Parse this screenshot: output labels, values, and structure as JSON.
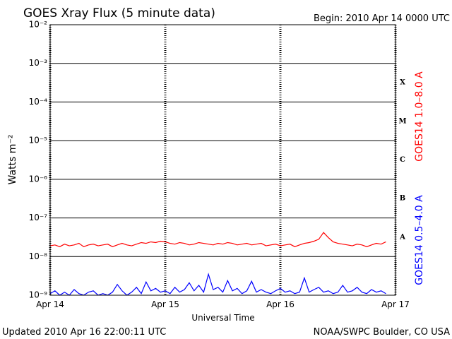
{
  "chart_data": {
    "type": "line",
    "title": "GOES Xray Flux (5 minute data)",
    "begin_label": "Begin:  2010 Apr 14 0000 UTC",
    "updated_label": "Updated 2010 Apr 16 22:00:11 UTC",
    "credit": "NOAA/SWPC Boulder, CO USA",
    "y_label": "Watts m⁻²",
    "x_label": "Universal Time",
    "log_scale": true,
    "grid": true,
    "xlim": [
      0,
      72
    ],
    "xticks": [
      {
        "value": 0,
        "label": "Apr 14"
      },
      {
        "value": 24,
        "label": "Apr 15"
      },
      {
        "value": 48,
        "label": "Apr 16"
      },
      {
        "value": 72,
        "label": "Apr 17"
      }
    ],
    "ylim": [
      1e-09,
      0.01
    ],
    "yticks": [
      {
        "value": 1e-09,
        "label": "10⁻⁹"
      },
      {
        "value": 1e-08,
        "label": "10⁻⁸"
      },
      {
        "value": 1e-07,
        "label": "10⁻⁷"
      },
      {
        "value": 1e-06,
        "label": "10⁻⁶"
      },
      {
        "value": 1e-05,
        "label": "10⁻⁵"
      },
      {
        "value": 0.0001,
        "label": "10⁻⁴"
      },
      {
        "value": 0.001,
        "label": "10⁻³"
      },
      {
        "value": 0.01,
        "label": "10⁻²"
      }
    ],
    "flare_classes": [
      {
        "value": 1e-08,
        "label": "A"
      },
      {
        "value": 1e-07,
        "label": "B"
      },
      {
        "value": 1e-06,
        "label": "C"
      },
      {
        "value": 1e-05,
        "label": "M"
      },
      {
        "value": 0.0001,
        "label": "X"
      }
    ],
    "x": [
      0,
      1,
      2,
      3,
      4,
      5,
      6,
      7,
      8,
      9,
      10,
      11,
      12,
      13,
      14,
      15,
      16,
      17,
      18,
      19,
      20,
      21,
      22,
      23,
      24,
      25,
      26,
      27,
      28,
      29,
      30,
      31,
      32,
      33,
      34,
      35,
      36,
      37,
      38,
      39,
      40,
      41,
      42,
      43,
      44,
      45,
      46,
      47,
      48,
      49,
      50,
      51,
      52,
      53,
      54,
      55,
      56,
      57,
      58,
      59,
      60,
      61,
      62,
      63,
      64,
      65,
      66,
      67,
      68,
      69,
      70
    ],
    "series": [
      {
        "name": "GOES14 1.0–8.0 A",
        "color": "#ff0000",
        "values": [
          1.9e-08,
          2e-08,
          1.8e-08,
          2.1e-08,
          1.9e-08,
          2e-08,
          2.2e-08,
          1.8e-08,
          2e-08,
          2.1e-08,
          1.9e-08,
          2e-08,
          2.1e-08,
          1.8e-08,
          2e-08,
          2.2e-08,
          2e-08,
          1.9e-08,
          2.1e-08,
          2.3e-08,
          2.2e-08,
          2.4e-08,
          2.3e-08,
          2.5e-08,
          2.4e-08,
          2.2e-08,
          2.1e-08,
          2.3e-08,
          2.2e-08,
          2e-08,
          2.1e-08,
          2.3e-08,
          2.2e-08,
          2.1e-08,
          2e-08,
          2.2e-08,
          2.1e-08,
          2.3e-08,
          2.2e-08,
          2e-08,
          2.1e-08,
          2.2e-08,
          2e-08,
          2.1e-08,
          2.2e-08,
          1.9e-08,
          2e-08,
          2.1e-08,
          1.9e-08,
          2e-08,
          2.1e-08,
          1.8e-08,
          2e-08,
          2.2e-08,
          2.3e-08,
          2.5e-08,
          2.8e-08,
          4.2e-08,
          3.1e-08,
          2.4e-08,
          2.2e-08,
          2.1e-08,
          2e-08,
          1.9e-08,
          2.1e-08,
          2e-08,
          1.8e-08,
          2e-08,
          2.2e-08,
          2.1e-08,
          2.4e-08
        ]
      },
      {
        "name": "GOES14 0.5–4.0 A",
        "color": "#0000ff",
        "values": [
          1.1e-09,
          1.3e-09,
          1e-09,
          1.2e-09,
          1e-09,
          1.4e-09,
          1.1e-09,
          1e-09,
          1.2e-09,
          1.3e-09,
          1e-09,
          1.1e-09,
          1e-09,
          1.2e-09,
          1.9e-09,
          1.3e-09,
          1e-09,
          1.2e-09,
          1.6e-09,
          1.1e-09,
          2.2e-09,
          1.3e-09,
          1.5e-09,
          1.2e-09,
          1.3e-09,
          1.1e-09,
          1.6e-09,
          1.2e-09,
          1.4e-09,
          2.1e-09,
          1.3e-09,
          1.8e-09,
          1.2e-09,
          3.5e-09,
          1.4e-09,
          1.6e-09,
          1.2e-09,
          2.4e-09,
          1.3e-09,
          1.5e-09,
          1.1e-09,
          1.3e-09,
          2.3e-09,
          1.2e-09,
          1.4e-09,
          1.2e-09,
          1.1e-09,
          1.3e-09,
          1.5e-09,
          1.2e-09,
          1.3e-09,
          1.1e-09,
          1.2e-09,
          2.8e-09,
          1.2e-09,
          1.4e-09,
          1.6e-09,
          1.2e-09,
          1.3e-09,
          1.1e-09,
          1.2e-09,
          1.8e-09,
          1.2e-09,
          1.3e-09,
          1.6e-09,
          1.2e-09,
          1.1e-09,
          1.4e-09,
          1.2e-09,
          1.3e-09,
          1.1e-09
        ]
      }
    ]
  }
}
